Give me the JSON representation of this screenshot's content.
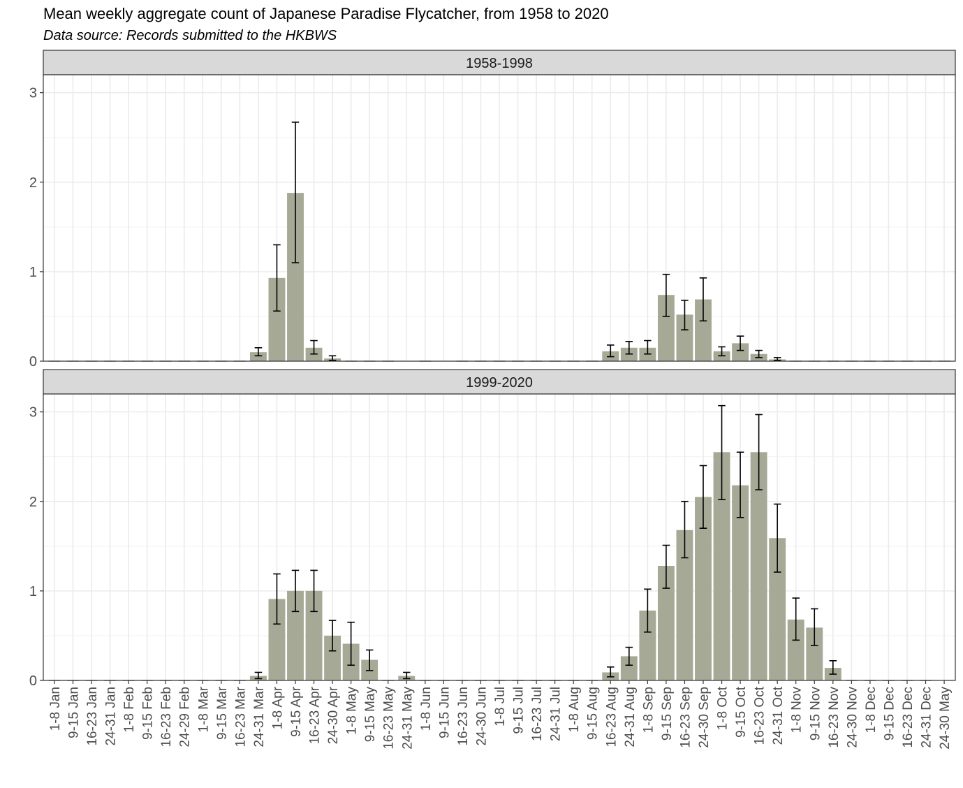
{
  "title": "Mean weekly aggregate count of Japanese Paradise Flycatcher, from 1958 to 2020",
  "subtitle": "Data source: Records submitted to the HKBWS",
  "chart_data": {
    "type": "bar",
    "facets": [
      "1958-1998",
      "1999-2020"
    ],
    "xlabel": "",
    "ylabel": "",
    "ylim": [
      0,
      3.2
    ],
    "yticks": [
      0,
      1,
      2,
      3
    ],
    "grid": true,
    "error_bars": true,
    "colors": {
      "bar": "#a7a997",
      "strip": "#d9d9d9",
      "grid": "#ebebeb",
      "error": "#000000"
    },
    "categories": [
      "1-8 Jan",
      "9-15 Jan",
      "16-23 Jan",
      "24-31 Jan",
      "1-8 Feb",
      "9-15 Feb",
      "16-23 Feb",
      "24-29 Feb",
      "1-8 Mar",
      "9-15 Mar",
      "16-23 Mar",
      "24-31 Mar",
      "1-8 Apr",
      "9-15 Apr",
      "16-23 Apr",
      "24-30 Apr",
      "1-8 May",
      "9-15 May",
      "16-23 May",
      "24-31 May",
      "1-8 Jun",
      "9-15 Jun",
      "16-23 Jun",
      "24-30 Jun",
      "1-8 Jul",
      "9-15 Jul",
      "16-23 Jul",
      "24-31 Jul",
      "1-8 Aug",
      "9-15 Aug",
      "16-23 Aug",
      "24-31 Aug",
      "1-8 Sep",
      "9-15 Sep",
      "16-23 Sep",
      "24-30 Sep",
      "1-8 Oct",
      "9-15 Oct",
      "16-23 Oct",
      "24-31 Oct",
      "1-8 Nov",
      "9-15 Nov",
      "16-23 Nov",
      "24-30 Nov",
      "1-8 Dec",
      "9-15 Dec",
      "16-23 Dec",
      "24-31 Dec",
      "24-30 May"
    ],
    "series": [
      {
        "facet": "1958-1998",
        "values": [
          0,
          0,
          0,
          0,
          0,
          0,
          0,
          0,
          0,
          0,
          0,
          0.1,
          0.93,
          1.88,
          0.15,
          0.03,
          0,
          0,
          0,
          null,
          0,
          null,
          0,
          0,
          0,
          0,
          0,
          0,
          0,
          0,
          0.11,
          0.15,
          0.15,
          0.74,
          0.52,
          0.69,
          0.11,
          0.2,
          0.08,
          0.02,
          0,
          0,
          0,
          0,
          0,
          0,
          0,
          0,
          0
        ],
        "err_low": [
          null,
          null,
          null,
          null,
          null,
          null,
          null,
          null,
          null,
          null,
          null,
          0.06,
          0.56,
          1.1,
          0.08,
          0.01,
          null,
          null,
          null,
          null,
          null,
          null,
          null,
          null,
          null,
          null,
          null,
          null,
          null,
          null,
          0.05,
          0.08,
          0.08,
          0.5,
          0.35,
          0.45,
          0.06,
          0.12,
          0.04,
          0.01,
          null,
          null,
          null,
          null,
          null,
          null,
          null,
          null,
          null
        ],
        "err_high": [
          null,
          null,
          null,
          null,
          null,
          null,
          null,
          null,
          null,
          null,
          null,
          0.15,
          1.3,
          2.67,
          0.23,
          0.06,
          null,
          null,
          null,
          null,
          null,
          null,
          null,
          null,
          null,
          null,
          null,
          null,
          null,
          null,
          0.18,
          0.22,
          0.23,
          0.97,
          0.68,
          0.93,
          0.16,
          0.28,
          0.12,
          0.04,
          null,
          null,
          null,
          null,
          null,
          null,
          null,
          null,
          null
        ]
      },
      {
        "facet": "1999-2020",
        "values": [
          0,
          0,
          0,
          0,
          0,
          0,
          0,
          0,
          0,
          0,
          0,
          0.05,
          0.91,
          1.0,
          1.0,
          0.5,
          0.41,
          0.23,
          0,
          0.05,
          0,
          0,
          0,
          0,
          0,
          0,
          0,
          0,
          0,
          0,
          0.09,
          0.27,
          0.78,
          1.28,
          1.68,
          2.05,
          2.55,
          2.18,
          2.55,
          1.59,
          0.68,
          0.59,
          0.14,
          0,
          0,
          0,
          0,
          0,
          null
        ],
        "err_low": [
          null,
          null,
          null,
          null,
          null,
          null,
          null,
          null,
          null,
          null,
          null,
          0.02,
          0.63,
          0.77,
          0.77,
          0.33,
          0.17,
          0.11,
          null,
          0.02,
          null,
          null,
          null,
          null,
          null,
          null,
          null,
          null,
          null,
          null,
          0.04,
          0.17,
          0.54,
          1.03,
          1.37,
          1.7,
          2.02,
          1.82,
          2.13,
          1.21,
          0.45,
          0.39,
          0.07,
          null,
          null,
          null,
          null,
          null,
          null
        ],
        "err_high": [
          null,
          null,
          null,
          null,
          null,
          null,
          null,
          null,
          null,
          null,
          null,
          0.09,
          1.19,
          1.23,
          1.23,
          0.67,
          0.65,
          0.34,
          null,
          0.09,
          null,
          null,
          null,
          null,
          null,
          null,
          null,
          null,
          null,
          null,
          0.15,
          0.37,
          1.02,
          1.51,
          2.0,
          2.4,
          3.07,
          2.55,
          2.97,
          1.97,
          0.92,
          0.8,
          0.22,
          null,
          null,
          null,
          null,
          null,
          null
        ]
      }
    ]
  }
}
